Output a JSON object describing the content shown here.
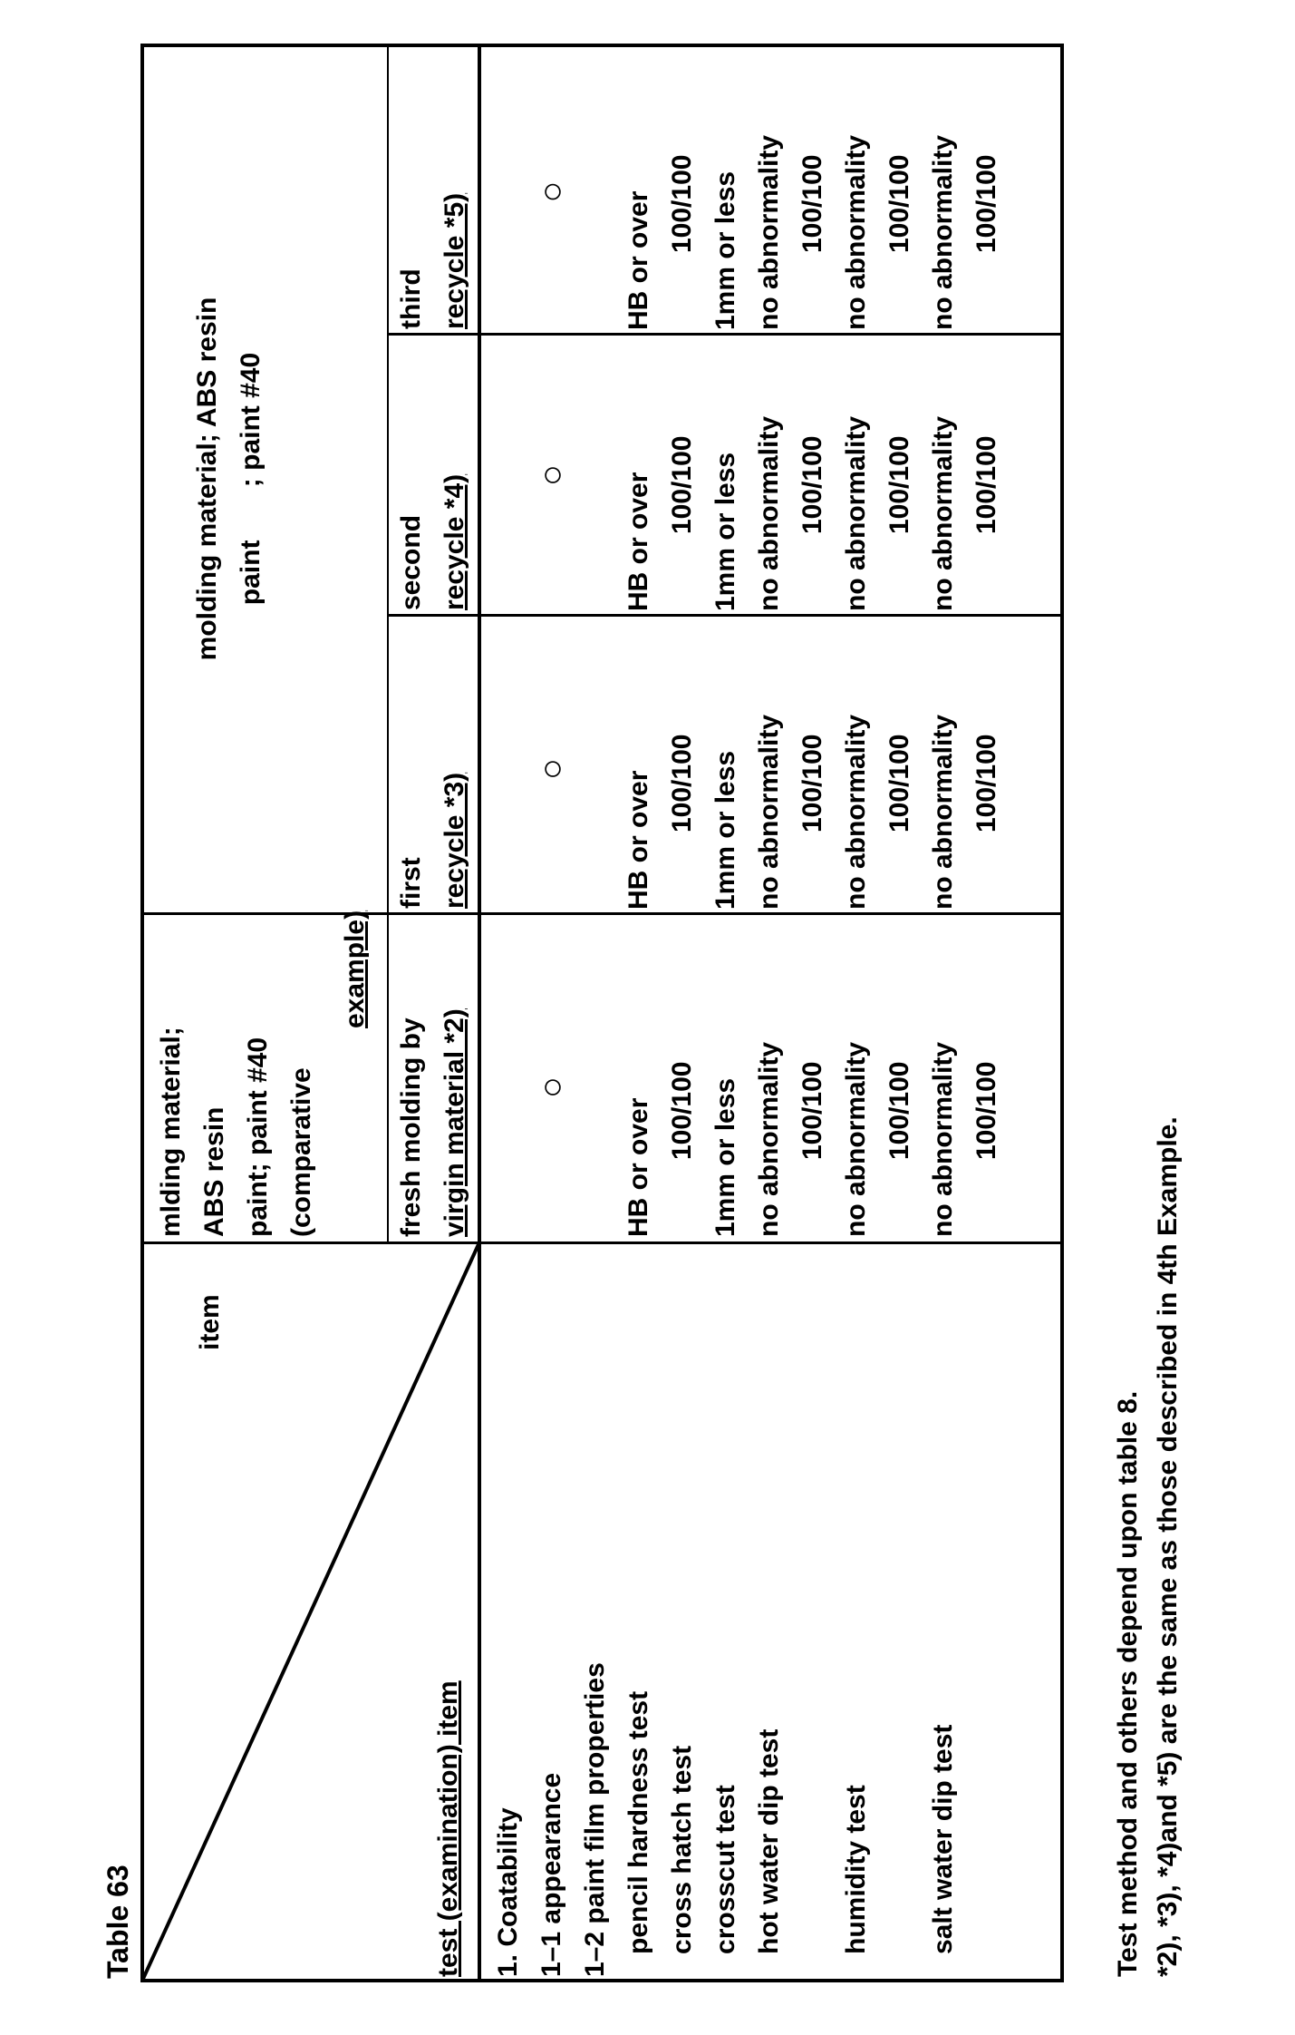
{
  "title": "Table 63",
  "header": {
    "diag_top": "item",
    "diag_bottom": "test (examination) item",
    "comparative": [
      "mlding material;",
      "ABS resin",
      "paint; paint #40",
      "(comparative",
      "example)"
    ],
    "comparative_sub": [
      "fresh molding by",
      "virgin material *2)"
    ],
    "group": [
      "molding material; ABS resin",
      "paint       ; paint #40"
    ],
    "subs": [
      [
        "first",
        "recycle *3)"
      ],
      [
        "second",
        "recycle *4)"
      ],
      [
        "third",
        "recycle *5)"
      ]
    ]
  },
  "row_labels": [
    "1. Coatability",
    "1–1 appearance",
    "1–2 paint film properties",
    "   pencil hardness test",
    "   cross hatch test",
    "   crosscut test",
    "   hot water dip test",
    "",
    "   humidity test",
    "",
    "   salt water dip test",
    ""
  ],
  "column_values": [
    [
      "",
      "○",
      "",
      "HB or over",
      "100/100",
      "1mm or less",
      "no abnormality",
      "100/100",
      "no abnormality",
      "100/100",
      "no abnormality",
      "100/100"
    ],
    [
      "",
      "○",
      "",
      "HB or over",
      "100/100",
      "1mm or less",
      "no abnormality",
      "100/100",
      "no abnormality",
      "100/100",
      "no abnormality",
      "100/100"
    ],
    [
      "",
      "○",
      "",
      "HB or over",
      "100/100",
      "1mm or less",
      "no abnormality",
      "100/100",
      "no abnormality",
      "100/100",
      "no abnormality",
      "100/100"
    ],
    [
      "",
      "○",
      "",
      "HB or over",
      "100/100",
      "1mm or less",
      "no abnormality",
      "100/100",
      "no abnormality",
      "100/100",
      "no abnormality",
      "100/100"
    ]
  ],
  "footnotes": [
    "Test method and others depend upon table 8.",
    "*2), *3), *4)and *5) are the same as those described in 4th Example."
  ]
}
